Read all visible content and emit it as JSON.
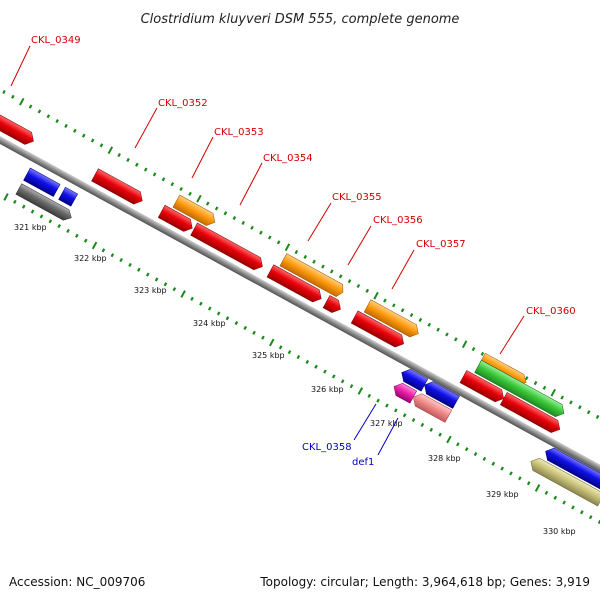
{
  "title": "Clostridium kluyveri DSM 555, complete genome",
  "footer": {
    "accession": "Accession: NC_009706",
    "topology": "Topology: circular; Length: 3,964,618 bp; Genes: 3,919"
  },
  "scale_labels": [
    "321 kbp",
    "322 kbp",
    "323 kbp",
    "324 kbp",
    "325 kbp",
    "326 kbp",
    "327 kbp",
    "328 kbp",
    "329 kbp",
    "330 kbp"
  ],
  "gene_labels": [
    {
      "text": "CKL_0349",
      "color": "#d10000"
    },
    {
      "text": "CKL_0352",
      "color": "#d10000"
    },
    {
      "text": "CKL_0353",
      "color": "#d10000"
    },
    {
      "text": "CKL_0354",
      "color": "#d10000"
    },
    {
      "text": "CKL_0355",
      "color": "#d10000"
    },
    {
      "text": "CKL_0356",
      "color": "#d10000"
    },
    {
      "text": "CKL_0357",
      "color": "#d10000"
    },
    {
      "text": "CKL_0360",
      "color": "#d10000"
    },
    {
      "text": "CKL_0358",
      "color": "#0000c8"
    },
    {
      "text": "def1",
      "color": "#0000c8"
    }
  ],
  "colors": {
    "red": "#e8000a",
    "orange": "#ff9c10",
    "green": "#3cc93c",
    "blue": "#1010e8",
    "gray": "#6a6a6a",
    "magenta": "#ee22aa",
    "pink": "#f28c8c",
    "khaki": "#c8c27a",
    "tick_green": "#1a8a1a",
    "backbone": "#8a8a8a"
  }
}
